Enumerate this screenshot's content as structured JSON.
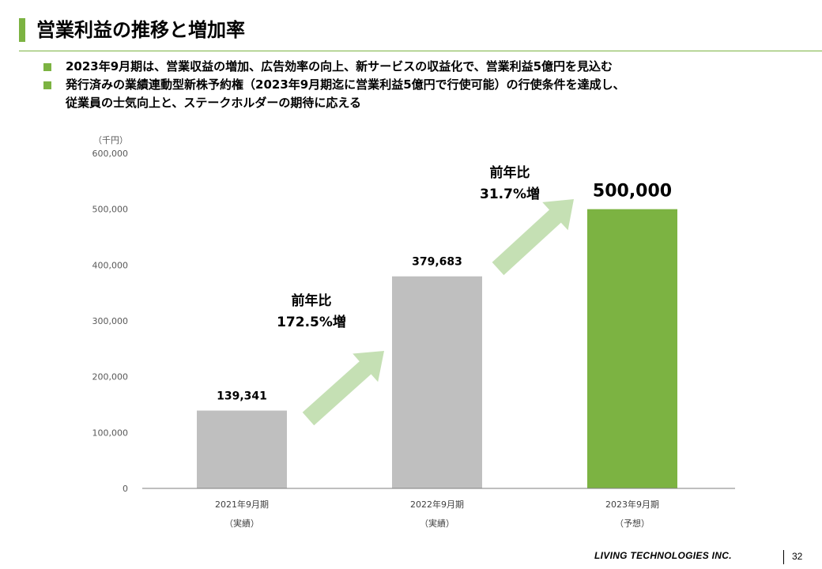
{
  "slide": {
    "title": "営業利益の推移と増加率",
    "bullets": [
      {
        "lines": [
          "2023年9月期は、営業収益の増加、広告効率の向上、新サービスの収益化で、営業利益5億円を見込む"
        ]
      },
      {
        "lines": [
          "発行済みの業績連動型新株予約権（2023年9月期迄に営業利益5億円で行使可能）の行使条件を達成し、",
          "従業員の士気向上と、ステークホルダーの期待に応える"
        ]
      }
    ],
    "footer": {
      "company": "LIVING TECHNOLOGIES INC.",
      "page": "32"
    }
  },
  "colors": {
    "accent": "#7cb342",
    "bar_actual": "#bfbfbf",
    "bar_forecast": "#7cb342",
    "arrow": "#c5e0b4"
  },
  "chart_data": {
    "type": "bar",
    "unit_label": "（千円）",
    "categories": [
      "2021年9月期",
      "2022年9月期",
      "2023年9月期"
    ],
    "category_notes": [
      "（実績）",
      "（実績）",
      "（予想）"
    ],
    "values": [
      139341,
      379683,
      500000
    ],
    "value_labels": [
      "139,341",
      "379,683",
      "500,000"
    ],
    "ylim": [
      0,
      600000
    ],
    "yticks": [
      0,
      100000,
      200000,
      300000,
      400000,
      500000,
      600000
    ],
    "ytick_labels": [
      "0",
      "100,000",
      "200,000",
      "300,000",
      "400,000",
      "500,000",
      "600,000"
    ],
    "grid": false,
    "growth_annotations": [
      {
        "line1": "前年比",
        "line2": "172.5%増"
      },
      {
        "line1": "前年比",
        "line2": "31.7%増"
      }
    ]
  }
}
